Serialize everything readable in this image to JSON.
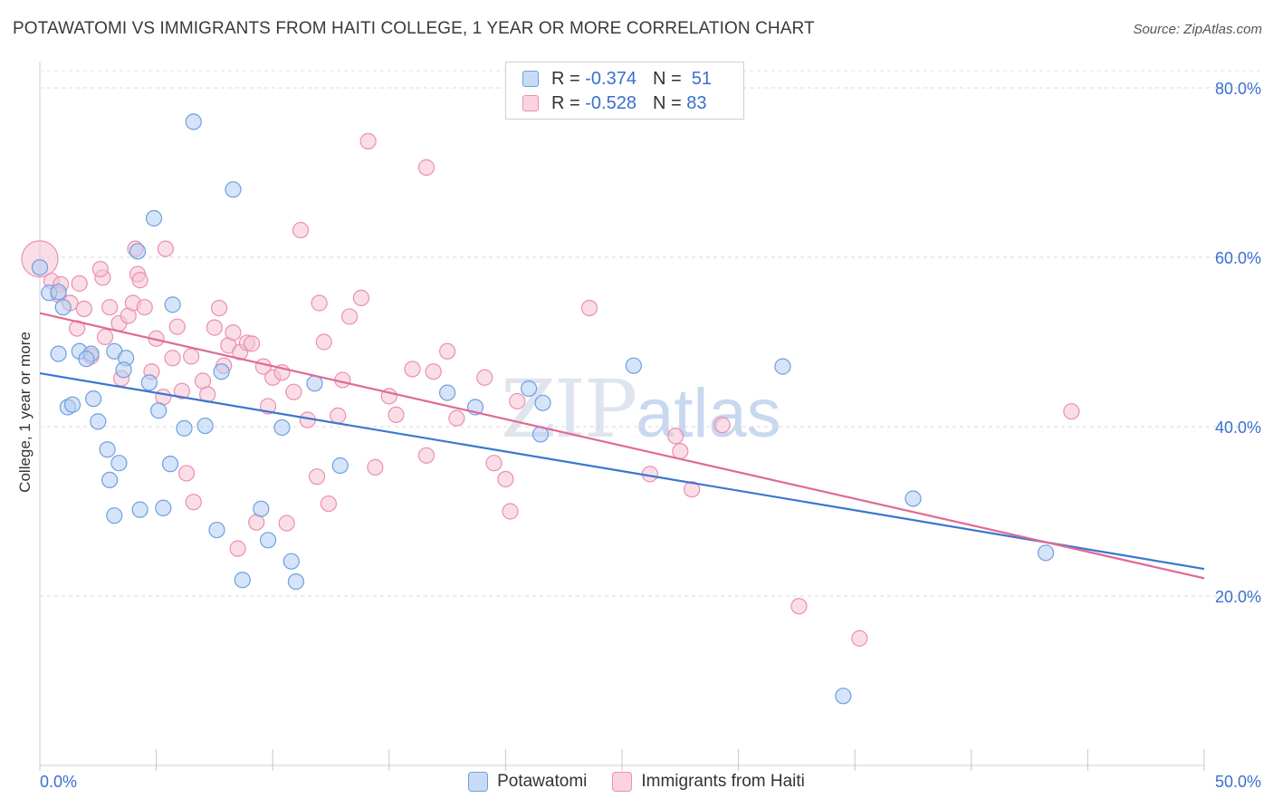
{
  "header": {
    "title": "POTAWATOMI VS IMMIGRANTS FROM HAITI COLLEGE, 1 YEAR OR MORE CORRELATION CHART",
    "source": "Source: ZipAtlas.com"
  },
  "watermark": {
    "zip": "ZIP",
    "atlas": "atlas"
  },
  "legend_top": [
    {
      "r_label": "R =",
      "r_value": "-0.374",
      "n_label": "N =",
      "n_value": "51",
      "color": "#a9c4ec"
    },
    {
      "r_label": "R =",
      "r_value": "-0.528",
      "n_label": "N =",
      "n_value": "83",
      "color": "#f5b8cb"
    }
  ],
  "chart_data": {
    "type": "scatter",
    "title": "POTAWATOMI VS IMMIGRANTS FROM HAITI COLLEGE, 1 YEAR OR MORE CORRELATION CHART",
    "xlabel": "",
    "ylabel": "College, 1 year or more",
    "xlim": [
      0,
      50
    ],
    "ylim": [
      0,
      82
    ],
    "x_tick_labels": [
      "0.0%",
      "50.0%"
    ],
    "y_ticks": [
      20,
      40,
      60,
      80
    ],
    "y_tick_labels": [
      "20.0%",
      "40.0%",
      "60.0%",
      "80.0%"
    ],
    "grid": true,
    "legend_position": "top-center",
    "series": [
      {
        "name": "Potawatomi",
        "color": "#6f9fe0",
        "fill": "#b3cdf2",
        "trend": {
          "x": [
            0,
            50
          ],
          "y": [
            46.3,
            23.2
          ],
          "color": "#3a76d0"
        },
        "points": [
          [
            0.4,
            55.8
          ],
          [
            1.0,
            54.1
          ],
          [
            0.8,
            48.6
          ],
          [
            1.7,
            48.9
          ],
          [
            2.2,
            48.6
          ],
          [
            2.0,
            48.0
          ],
          [
            3.2,
            48.9
          ],
          [
            3.7,
            48.1
          ],
          [
            1.2,
            42.3
          ],
          [
            1.4,
            42.6
          ],
          [
            2.3,
            43.3
          ],
          [
            2.5,
            40.6
          ],
          [
            3.6,
            46.7
          ],
          [
            4.7,
            45.2
          ],
          [
            5.1,
            41.9
          ],
          [
            5.7,
            54.4
          ],
          [
            2.9,
            37.3
          ],
          [
            3.4,
            35.7
          ],
          [
            3.0,
            33.7
          ],
          [
            4.3,
            30.2
          ],
          [
            3.2,
            29.5
          ],
          [
            5.3,
            30.4
          ],
          [
            5.6,
            35.6
          ],
          [
            6.2,
            39.8
          ],
          [
            7.1,
            40.1
          ],
          [
            7.8,
            46.5
          ],
          [
            7.6,
            27.8
          ],
          [
            8.7,
            21.9
          ],
          [
            9.5,
            30.3
          ],
          [
            9.8,
            26.6
          ],
          [
            10.4,
            39.9
          ],
          [
            10.8,
            24.1
          ],
          [
            11.0,
            21.7
          ],
          [
            11.8,
            45.1
          ],
          [
            12.9,
            35.4
          ],
          [
            17.5,
            44.0
          ],
          [
            18.7,
            42.3
          ],
          [
            21.0,
            44.5
          ],
          [
            21.5,
            39.1
          ],
          [
            21.6,
            42.8
          ],
          [
            25.5,
            47.2
          ],
          [
            31.9,
            47.1
          ],
          [
            37.5,
            31.5
          ],
          [
            43.2,
            25.1
          ],
          [
            34.5,
            8.2
          ],
          [
            6.6,
            76.0
          ],
          [
            8.3,
            68.0
          ],
          [
            4.9,
            64.6
          ],
          [
            4.2,
            60.7
          ],
          [
            0.8,
            55.9
          ],
          [
            0.0,
            58.8
          ]
        ]
      },
      {
        "name": "Immigrants from Haiti",
        "color": "#ec8fae",
        "fill": "#f6c3d3",
        "trend": {
          "x": [
            0,
            50
          ],
          "y": [
            53.4,
            22.1
          ],
          "color": "#e06a92"
        },
        "points": [
          [
            0.0,
            59.8
          ],
          [
            0.5,
            57.2
          ],
          [
            0.9,
            56.8
          ],
          [
            0.8,
            55.6
          ],
          [
            1.3,
            54.6
          ],
          [
            1.9,
            53.9
          ],
          [
            1.6,
            51.6
          ],
          [
            1.7,
            56.9
          ],
          [
            2.2,
            48.3
          ],
          [
            2.7,
            57.6
          ],
          [
            2.6,
            58.6
          ],
          [
            3.0,
            54.1
          ],
          [
            2.8,
            50.6
          ],
          [
            3.4,
            52.2
          ],
          [
            3.5,
            45.7
          ],
          [
            3.8,
            53.1
          ],
          [
            4.0,
            54.6
          ],
          [
            4.2,
            58.0
          ],
          [
            4.3,
            57.3
          ],
          [
            4.5,
            54.1
          ],
          [
            4.8,
            46.5
          ],
          [
            5.0,
            50.4
          ],
          [
            5.3,
            43.5
          ],
          [
            5.4,
            61.0
          ],
          [
            5.7,
            48.1
          ],
          [
            5.9,
            51.8
          ],
          [
            6.1,
            44.2
          ],
          [
            6.3,
            34.5
          ],
          [
            6.5,
            48.3
          ],
          [
            6.6,
            31.1
          ],
          [
            7.0,
            45.4
          ],
          [
            7.2,
            43.8
          ],
          [
            7.5,
            51.7
          ],
          [
            7.7,
            54.0
          ],
          [
            7.9,
            47.2
          ],
          [
            8.1,
            49.6
          ],
          [
            8.3,
            51.1
          ],
          [
            8.6,
            48.8
          ],
          [
            8.9,
            49.9
          ],
          [
            9.1,
            49.8
          ],
          [
            9.3,
            28.7
          ],
          [
            9.6,
            47.1
          ],
          [
            9.8,
            42.4
          ],
          [
            10.0,
            45.8
          ],
          [
            10.4,
            46.4
          ],
          [
            10.6,
            28.6
          ],
          [
            10.9,
            44.1
          ],
          [
            11.2,
            63.2
          ],
          [
            11.5,
            40.8
          ],
          [
            11.9,
            34.1
          ],
          [
            12.0,
            54.6
          ],
          [
            12.2,
            50.0
          ],
          [
            12.4,
            30.9
          ],
          [
            12.8,
            41.3
          ],
          [
            13.0,
            45.5
          ],
          [
            13.3,
            53.0
          ],
          [
            13.8,
            55.2
          ],
          [
            14.1,
            73.7
          ],
          [
            14.4,
            35.2
          ],
          [
            15.0,
            43.6
          ],
          [
            15.3,
            41.4
          ],
          [
            16.0,
            46.8
          ],
          [
            16.6,
            36.6
          ],
          [
            16.9,
            46.5
          ],
          [
            17.5,
            48.9
          ],
          [
            17.9,
            41.0
          ],
          [
            19.1,
            45.8
          ],
          [
            19.5,
            35.7
          ],
          [
            20.0,
            33.8
          ],
          [
            20.2,
            30.0
          ],
          [
            20.5,
            43.0
          ],
          [
            16.6,
            70.6
          ],
          [
            23.6,
            54.0
          ],
          [
            26.2,
            34.4
          ],
          [
            27.3,
            38.9
          ],
          [
            27.5,
            37.1
          ],
          [
            28.0,
            32.6
          ],
          [
            29.3,
            40.2
          ],
          [
            32.6,
            18.8
          ],
          [
            35.2,
            15.0
          ],
          [
            44.3,
            41.8
          ],
          [
            8.5,
            25.6
          ],
          [
            4.1,
            61.0
          ]
        ]
      }
    ]
  },
  "legend_bottom": [
    {
      "label": "Potawatomi",
      "color": "#a9c4ec"
    },
    {
      "label": "Immigrants from Haiti",
      "color": "#f5b8cb"
    }
  ]
}
